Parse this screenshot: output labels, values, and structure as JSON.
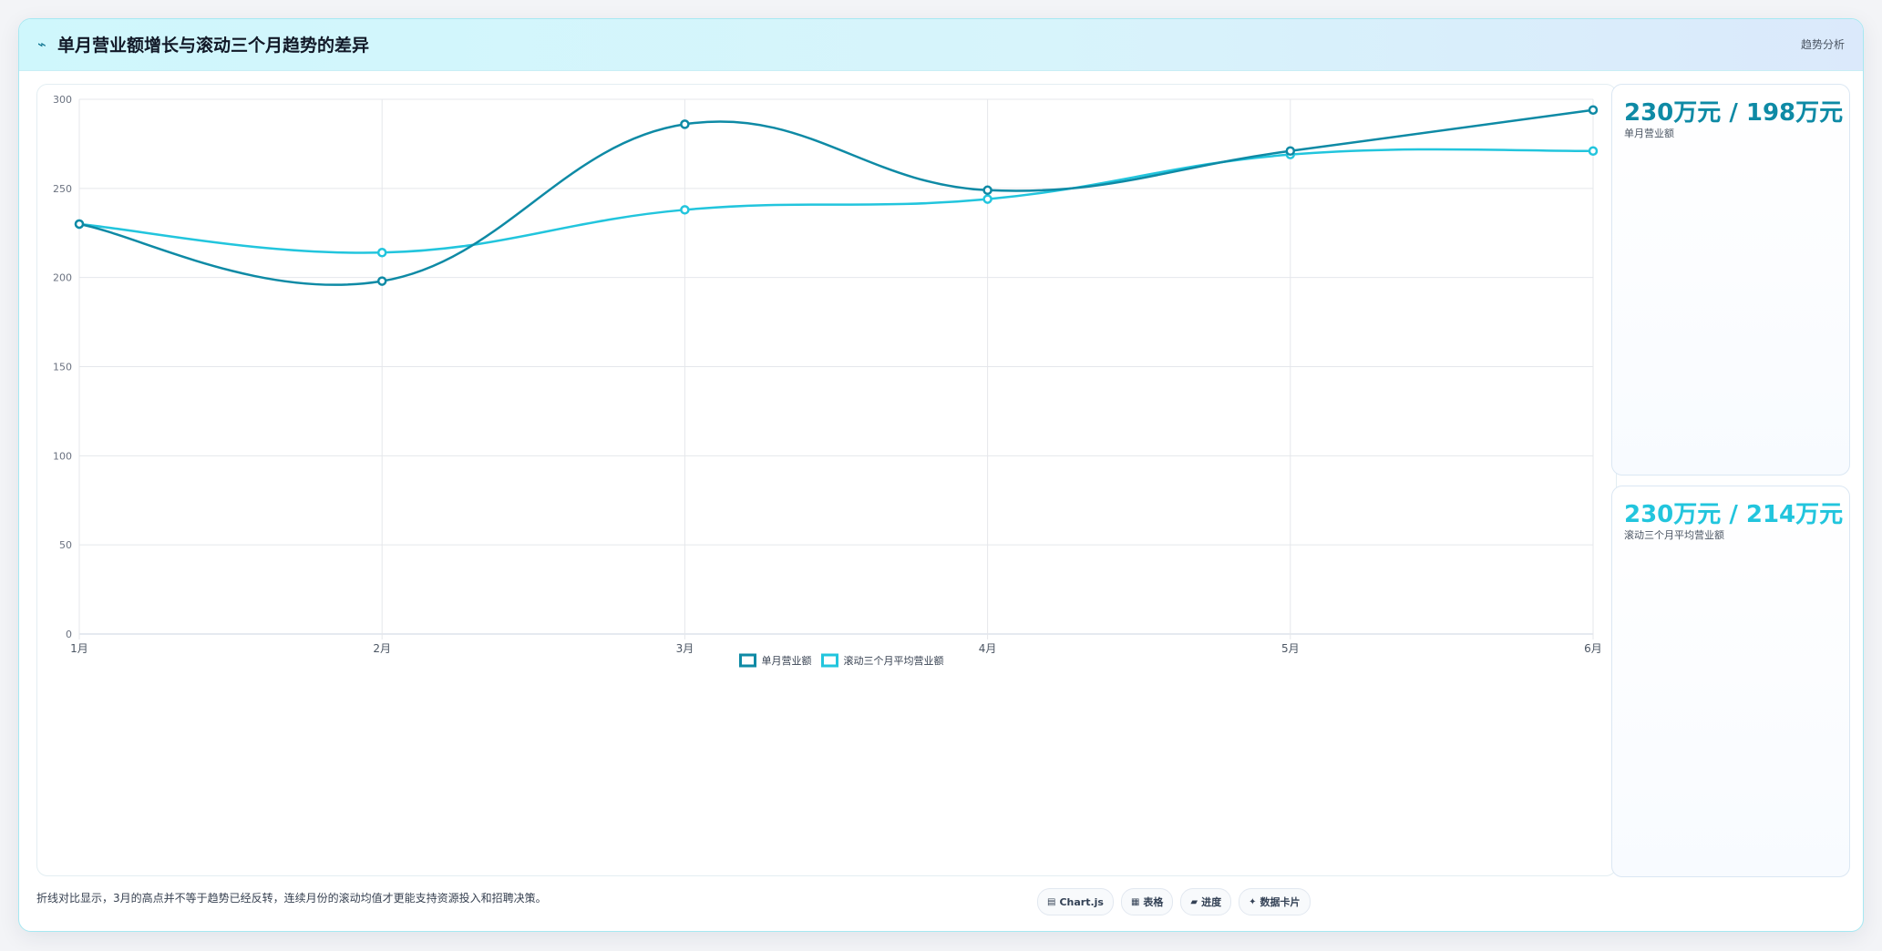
{
  "header": {
    "icon": "trend-line-icon",
    "title": "单月营业额增长与滚动三个月趋势的差异",
    "tag": "趋势分析"
  },
  "colors": {
    "series1": "#0e8aa5",
    "series2": "#22c5dd",
    "accent": "#a7e8f2"
  },
  "chart_data": {
    "type": "line",
    "categories": [
      "1月",
      "2月",
      "3月",
      "4月",
      "5月",
      "6月"
    ],
    "series": [
      {
        "name": "单月营业额",
        "values": [
          230,
          198,
          286,
          249,
          271,
          294
        ]
      },
      {
        "name": "滚动三个月平均营业额",
        "values": [
          230,
          214,
          238,
          244,
          269,
          271
        ]
      }
    ],
    "ylim": [
      0,
      300
    ],
    "yticks": [
      0,
      50,
      100,
      150,
      200,
      250,
      300
    ],
    "grid": true,
    "legend": "bottom",
    "smooth": true
  },
  "cards": [
    {
      "value": "230万元 / 198万元",
      "label": "单月营业额"
    },
    {
      "value": "230万元 / 214万元",
      "label": "滚动三个月平均营业额"
    }
  ],
  "footer": {
    "note": "折线对比显示，3月的高点并不等于趋势已经反转，连续月份的滚动均值才更能支持资源投入和招聘决策。",
    "chips": [
      {
        "icon": "chart-icon",
        "glyph": "▤",
        "label": "Chart.js"
      },
      {
        "icon": "table-icon",
        "glyph": "▦",
        "label": "表格"
      },
      {
        "icon": "progress-icon",
        "glyph": "▰",
        "label": "进度"
      },
      {
        "icon": "data-card-icon",
        "glyph": "✦",
        "label": "数据卡片"
      }
    ]
  }
}
